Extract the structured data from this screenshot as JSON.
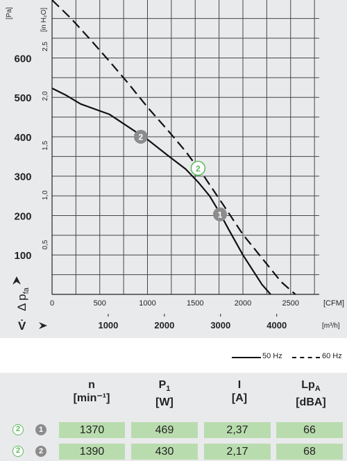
{
  "chart_data": {
    "type": "line",
    "xlabel_unit": "[CFM]",
    "x2label_unit": "[m³/h]",
    "ylabel_pa_unit": "[Pa]",
    "ylabel_inh2o_unit": "[in H₂O]",
    "ylabel_symbol": "Δ p",
    "ylabel_subscript": "fa",
    "x2label_symbol": "V̇",
    "xlim": [
      0,
      2800
    ],
    "ylim": [
      0,
      747
    ],
    "x_ticks": [
      "0",
      "500",
      "1000",
      "1500",
      "2000",
      "2500"
    ],
    "x2_ticks": [
      "1000",
      "2000",
      "3000",
      "4000"
    ],
    "y_ticks_pa": [
      "100",
      "200",
      "300",
      "400",
      "500",
      "600"
    ],
    "y_ticks_inh2o": [
      "0,5",
      "1,0",
      "1,5",
      "2,0",
      "2,5"
    ],
    "grid": true,
    "series": [
      {
        "name": "50 Hz",
        "style": "solid",
        "x": [
          0,
          150,
          300,
          600,
          800,
          1000,
          1200,
          1400,
          1530,
          1650,
          1750,
          1850,
          2000,
          2200,
          2290
        ],
        "y": [
          523,
          505,
          483,
          457,
          425,
          393,
          355,
          318,
          285,
          250,
          210,
          165,
          100,
          25,
          0
        ]
      },
      {
        "name": "60 Hz",
        "style": "dashed",
        "x": [
          0,
          200,
          400,
          600,
          800,
          1000,
          1200,
          1400,
          1600,
          1800,
          2000,
          2200,
          2400,
          2550
        ],
        "y": [
          752,
          700,
          647,
          592,
          535,
          475,
          420,
          363,
          297,
          225,
          152,
          92,
          32,
          0
        ]
      }
    ],
    "markers": [
      {
        "label": "2",
        "style": "solid",
        "x": 930,
        "y": 400
      },
      {
        "label": "2",
        "style": "outline",
        "x": 1530,
        "y": 320
      },
      {
        "label": "1",
        "style": "solid",
        "x": 1760,
        "y": 203
      }
    ]
  },
  "legend": {
    "items": [
      {
        "label": "50 Hz",
        "style": "solid"
      },
      {
        "label": "60 Hz",
        "style": "dashed"
      }
    ]
  },
  "table": {
    "headers": [
      {
        "main": "n",
        "sub": "",
        "unit": "[min⁻¹]"
      },
      {
        "main": "P",
        "sub": "1",
        "unit": "[W]"
      },
      {
        "main": "I",
        "sub": "",
        "unit": "[A]"
      },
      {
        "main": "Lp",
        "sub": "A",
        "unit": "[dBA]"
      }
    ],
    "rows": [
      {
        "badges": [
          "2",
          "1"
        ],
        "values": [
          "1370",
          "469",
          "2,37",
          "66"
        ]
      },
      {
        "badges": [
          "2",
          "2"
        ],
        "values": [
          "1390",
          "430",
          "2,17",
          "68"
        ]
      }
    ]
  },
  "colors": {
    "background": "#e9eaec",
    "grid": "#444444",
    "curve": "#111111",
    "marker_solid": "#8c8c8c",
    "marker_outline": "#5cb85c",
    "table_cell": "#b9dcae"
  }
}
